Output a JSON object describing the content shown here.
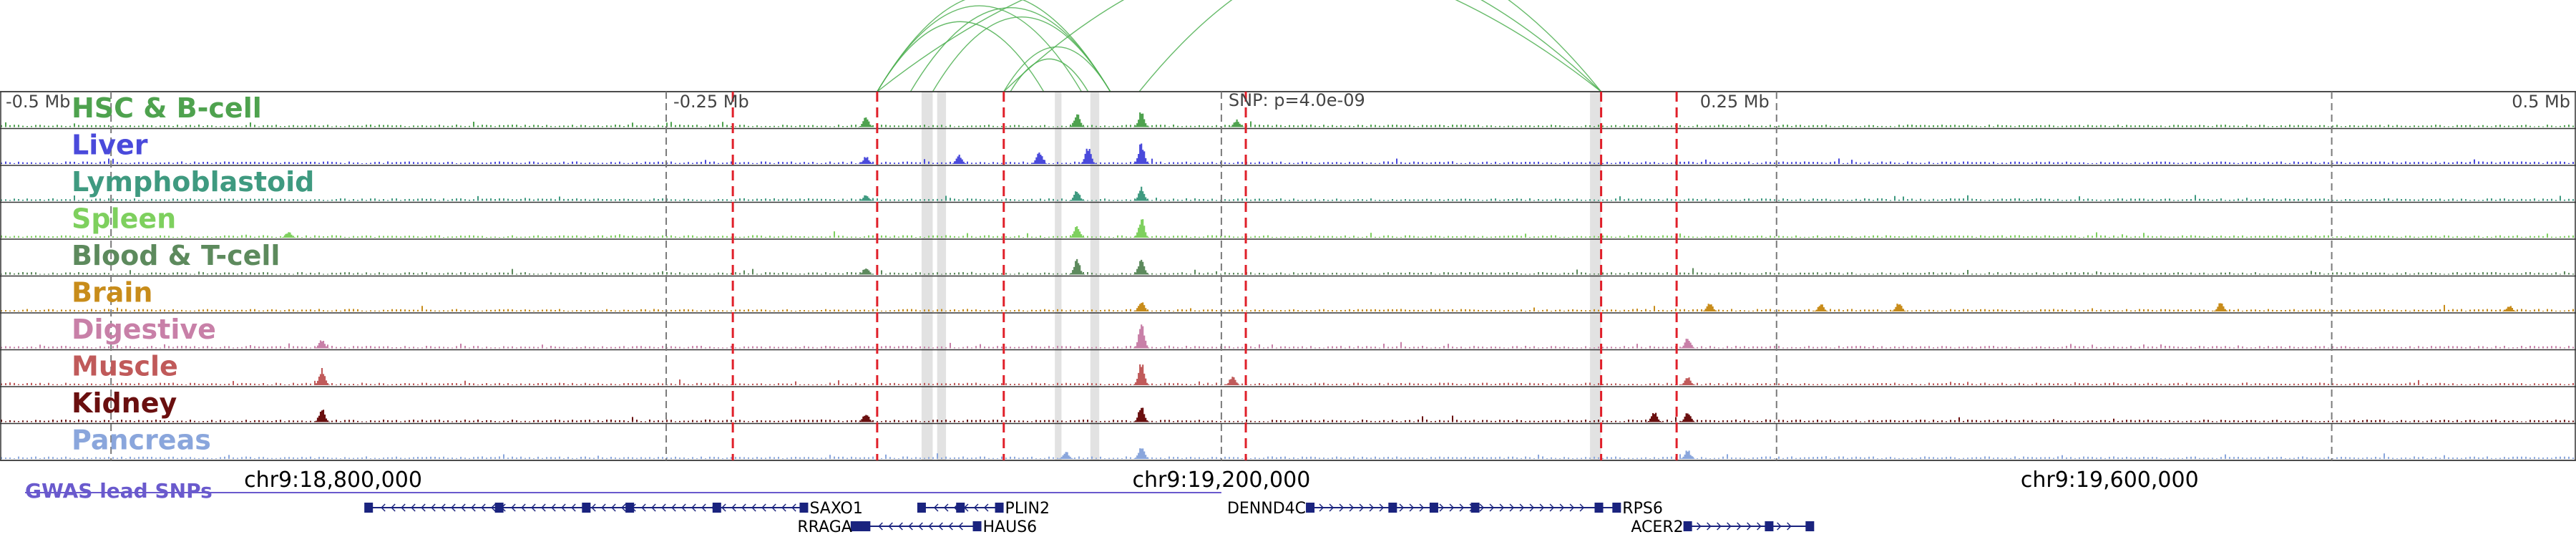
{
  "chart_data": {
    "type": "genome-browser-tracks",
    "region": "chr9",
    "x_range": [
      18650000,
      19810000
    ],
    "snp_position": 19200000,
    "snp_label": "SNP: p=4.0e-09",
    "distance_labels": [
      {
        "pos": 18700000,
        "text": "-0.5 Mb"
      },
      {
        "pos": 18950000,
        "text": "-0.25 Mb"
      },
      {
        "pos": 19450000,
        "text": "0.25 Mb"
      },
      {
        "pos": 19700000,
        "text": "0.5 Mb"
      }
    ],
    "coordinate_ticks": [
      {
        "pos": 18800000,
        "text": "chr9:18,800,000"
      },
      {
        "pos": 19200000,
        "text": "chr9:19,200,000"
      },
      {
        "pos": 19600000,
        "text": "chr9:19,600,000"
      }
    ],
    "tracks": [
      {
        "name": "HSC & B-cell",
        "color": "#4ea24e",
        "peaks": [
          [
            19040000,
            0.35
          ],
          [
            19135000,
            0.45
          ],
          [
            19164000,
            0.55
          ],
          [
            19207000,
            0.25
          ]
        ]
      },
      {
        "name": "Liver",
        "color": "#4a4adb",
        "peaks": [
          [
            19040000,
            0.25
          ],
          [
            19082000,
            0.3
          ],
          [
            19118000,
            0.45
          ],
          [
            19140000,
            0.55
          ],
          [
            19164000,
            0.7
          ]
        ]
      },
      {
        "name": "Lymphoblastoid",
        "color": "#3f9a80",
        "peaks": [
          [
            19040000,
            0.2
          ],
          [
            19135000,
            0.35
          ],
          [
            19164000,
            0.45
          ]
        ]
      },
      {
        "name": "Spleen",
        "color": "#7ed05e",
        "peaks": [
          [
            18780000,
            0.2
          ],
          [
            19135000,
            0.4
          ],
          [
            19164000,
            0.65
          ]
        ]
      },
      {
        "name": "Blood & T-cell",
        "color": "#5d8a5d",
        "peaks": [
          [
            19040000,
            0.25
          ],
          [
            19135000,
            0.5
          ],
          [
            19164000,
            0.6
          ]
        ]
      },
      {
        "name": "Brain",
        "color": "#c88c1a",
        "peaks": [
          [
            19164000,
            0.35
          ],
          [
            19420000,
            0.3
          ],
          [
            19470000,
            0.25
          ],
          [
            19505000,
            0.3
          ],
          [
            19650000,
            0.3
          ],
          [
            19780000,
            0.2
          ]
        ]
      },
      {
        "name": "Digestive",
        "color": "#c880a8",
        "peaks": [
          [
            18795000,
            0.3
          ],
          [
            19164000,
            0.8
          ],
          [
            19410000,
            0.35
          ]
        ]
      },
      {
        "name": "Muscle",
        "color": "#c05a5a",
        "peaks": [
          [
            18795000,
            0.55
          ],
          [
            19164000,
            0.8
          ],
          [
            19205000,
            0.3
          ],
          [
            19410000,
            0.3
          ]
        ]
      },
      {
        "name": "Kidney",
        "color": "#6a0f0f",
        "peaks": [
          [
            18795000,
            0.45
          ],
          [
            19040000,
            0.3
          ],
          [
            19164000,
            0.55
          ],
          [
            19395000,
            0.35
          ],
          [
            19410000,
            0.35
          ]
        ]
      },
      {
        "name": "Pancreas",
        "color": "#8aa6dc",
        "peaks": [
          [
            19130000,
            0.25
          ],
          [
            19164000,
            0.45
          ],
          [
            19410000,
            0.3
          ]
        ]
      }
    ],
    "red_dashed_lines": [
      18980000,
      19045000,
      19102000,
      19211000,
      19371000,
      19405000
    ],
    "highlight_regions": [
      [
        19065000,
        19070000
      ],
      [
        19072000,
        19076000
      ],
      [
        19125000,
        19128000
      ],
      [
        19141000,
        19145000
      ],
      [
        19366000,
        19371000
      ]
    ],
    "loops": [
      [
        19045000,
        19137000
      ],
      [
        19045000,
        19150000
      ],
      [
        19045000,
        19120000
      ],
      [
        19060000,
        19150000
      ],
      [
        19070000,
        19150000
      ],
      [
        19102000,
        19150000
      ],
      [
        19105000,
        19140000
      ],
      [
        19045000,
        19371000
      ],
      [
        19102000,
        19371000
      ],
      [
        19163000,
        19371000
      ]
    ],
    "gwas_track": {
      "label": "GWAS lead SNPs",
      "line_end": 19200000
    },
    "genes": [
      {
        "name": "SAXO1",
        "start": 18816000,
        "end": 19012000,
        "strand": "-",
        "row": 0
      },
      {
        "name": "PLIN2",
        "start": 19065000,
        "end": 19100000,
        "strand": "-",
        "row": 0
      },
      {
        "name": "DENND4C",
        "start": 19240000,
        "end": 19370000,
        "strand": "+",
        "row": 0
      },
      {
        "name": "RPS6",
        "start": 19370000,
        "end": 19378000,
        "strand": "-",
        "row": 0
      },
      {
        "name": "RRAGA",
        "start": 19035000,
        "end": 19038000,
        "strand": "+",
        "row": 1
      },
      {
        "name": "HAUS6",
        "start": 19040000,
        "end": 19090000,
        "strand": "-",
        "row": 1
      },
      {
        "name": "ACER2",
        "start": 19410000,
        "end": 19465000,
        "strand": "+",
        "row": 1
      }
    ]
  }
}
